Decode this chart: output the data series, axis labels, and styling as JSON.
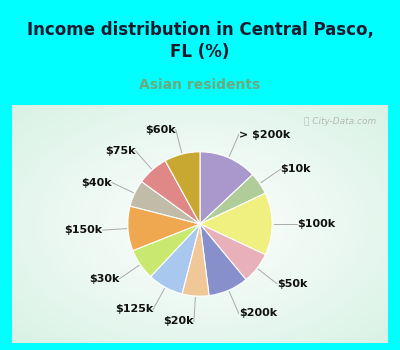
{
  "title": "Income distribution in Central Pasco,\nFL (%)",
  "subtitle": "Asian residents",
  "title_color": "#1a1a2e",
  "subtitle_color": "#6aaa7e",
  "bg_cyan": "#00ffff",
  "bg_chart_gradient_left": "#c8e8d8",
  "bg_chart_gradient_right": "#e8f8f0",
  "watermark": "ⓘ City-Data.com",
  "slices": [
    {
      "label": "> $200k",
      "value": 13,
      "color": "#a898cc"
    },
    {
      "label": "$10k",
      "value": 5,
      "color": "#b0cc98"
    },
    {
      "label": "$100k",
      "value": 14,
      "color": "#f0f080"
    },
    {
      "label": "$50k",
      "value": 7,
      "color": "#e8b0b8"
    },
    {
      "label": "$200k",
      "value": 9,
      "color": "#8890cc"
    },
    {
      "label": "$20k",
      "value": 6,
      "color": "#f0c898"
    },
    {
      "label": "$125k",
      "value": 8,
      "color": "#a8c8f0"
    },
    {
      "label": "$30k",
      "value": 7,
      "color": "#c8e870"
    },
    {
      "label": "$150k",
      "value": 10,
      "color": "#f0a850"
    },
    {
      "label": "$40k",
      "value": 6,
      "color": "#c0bca8"
    },
    {
      "label": "$75k",
      "value": 7,
      "color": "#e08888"
    },
    {
      "label": "$60k",
      "value": 8,
      "color": "#c8a830"
    }
  ],
  "label_fontsize": 8,
  "title_fontsize": 12,
  "subtitle_fontsize": 10,
  "fig_width": 4.0,
  "fig_height": 3.5,
  "dpi": 100
}
